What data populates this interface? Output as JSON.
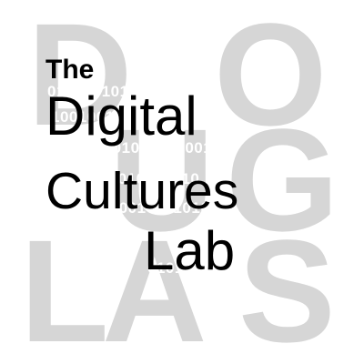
{
  "background_letters": {
    "row1": [
      "D",
      "O"
    ],
    "row2": [
      "U",
      "G"
    ],
    "row3": [
      "L",
      "A",
      "S"
    ]
  },
  "title": {
    "line1": "The",
    "line2": "Digital",
    "line3": "Cultures",
    "line4": "Lab"
  },
  "binary": {
    "row1": "01010010101",
    "row2": "100100101110010",
    "row3": "010100101001001001",
    "row4": "0101010010101010",
    "row5": "01010110001010101010",
    "row6": "01010101"
  },
  "colors": {
    "background": "#ffffff",
    "watermark": "#d6d6d6",
    "title": "#000000",
    "binary": "#ffffff"
  }
}
